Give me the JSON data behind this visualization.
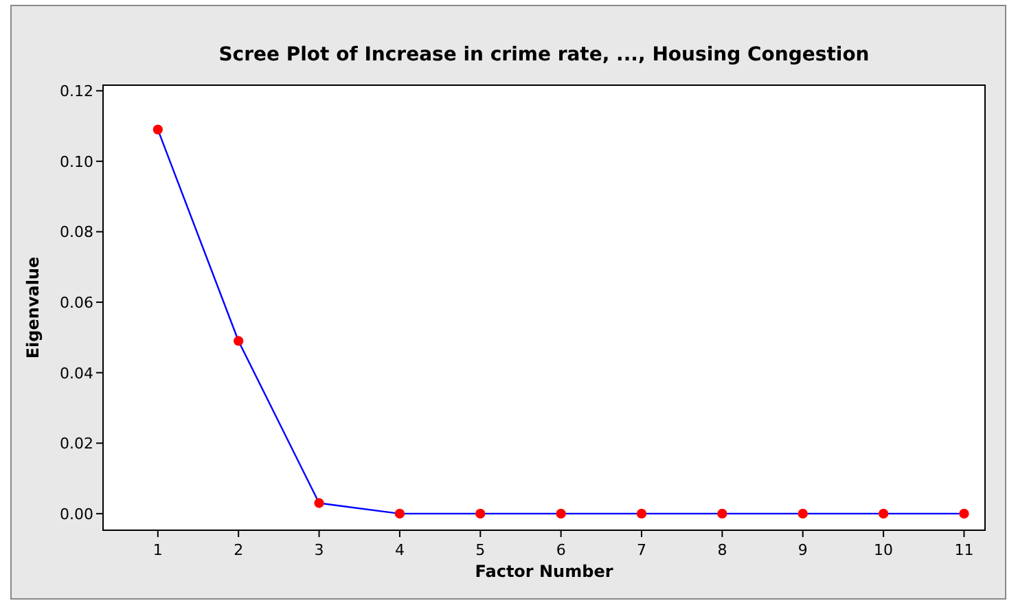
{
  "chart_data": {
    "type": "line",
    "title": "Scree Plot of Increase in crime rate, ..., Housing Congestion",
    "xlabel": "Factor Number",
    "ylabel": "Eigenvalue",
    "x": [
      1,
      2,
      3,
      4,
      5,
      6,
      7,
      8,
      9,
      10,
      11
    ],
    "series": [
      {
        "color": "#0000ff",
        "colors": [
          "#ff0000",
          "#ff0000",
          "#ff0000",
          "#ff0000",
          "#ff0000",
          "#ff0000",
          "#ff0000",
          "#ff0000",
          "#ff0000",
          "#ff0000",
          "#ff0000"
        ],
        "values": [
          0.109,
          0.049,
          0.003,
          0,
          0,
          0,
          0,
          0,
          0,
          0,
          0
        ]
      }
    ],
    "marker": "circle",
    "xlim": [
      0.32,
      11.26
    ],
    "xticks": [
      1,
      2,
      3,
      4,
      5,
      6,
      7,
      8,
      9,
      10,
      11
    ],
    "ylim": [
      -0.0047,
      0.1216
    ],
    "yticks": [
      {
        "value": 0,
        "label": "0.00"
      },
      {
        "value": 0.02,
        "label": "0.02"
      },
      {
        "value": 0.04,
        "label": "0.04"
      },
      {
        "value": 0.06,
        "label": "0.06"
      },
      {
        "value": 0.08,
        "label": "0.08"
      },
      {
        "value": 0.1,
        "label": "0.10"
      },
      {
        "value": 0.12,
        "label": "0.12"
      }
    ],
    "grid": false
  }
}
